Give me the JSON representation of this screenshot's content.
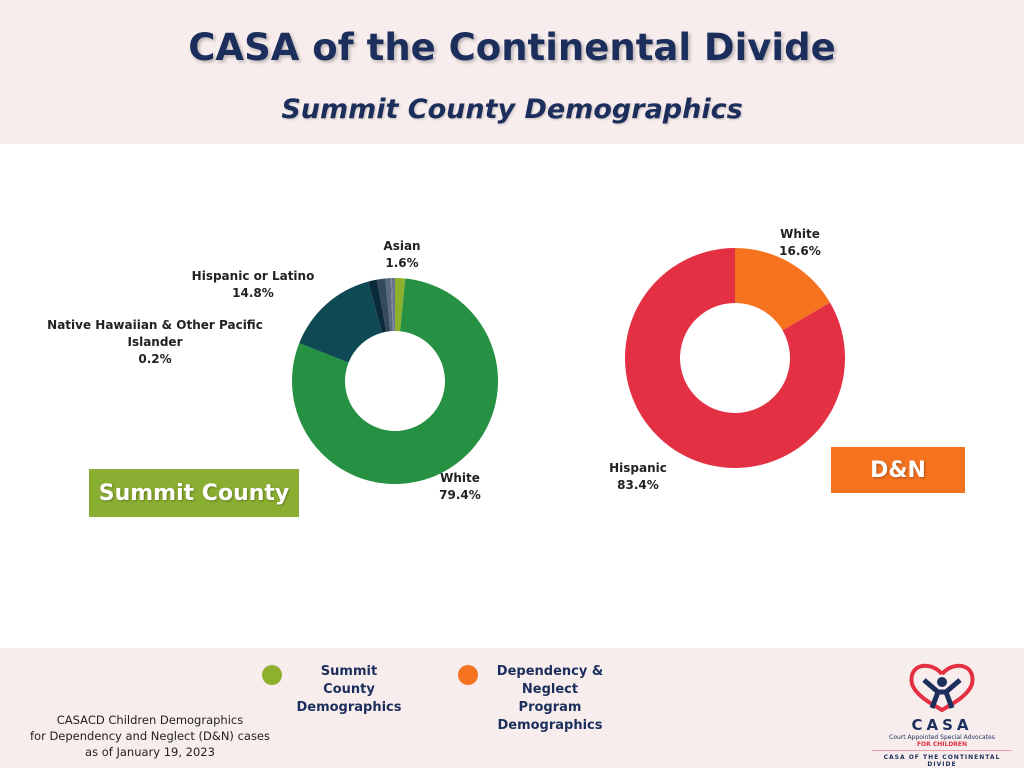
{
  "header": {
    "title": "CASA of the Continental Divide",
    "subtitle": "Summit County Demographics"
  },
  "chart_data": [
    {
      "type": "pie",
      "name": "Summit County",
      "tag": "Summit County",
      "slices": [
        {
          "label": "Asian",
          "value": 1.6,
          "display": "1.6%",
          "color": "#8db12f"
        },
        {
          "label": "White",
          "value": 79.4,
          "display": "79.4%",
          "color": "#269143"
        },
        {
          "label": "Hispanic or Latino",
          "value": 14.8,
          "display": "14.8%",
          "color": "#0e4a54"
        },
        {
          "label": null,
          "value": 1.4,
          "color": "#0b2a3a"
        },
        {
          "label": null,
          "value": 1.3,
          "color": "#35495e"
        },
        {
          "label": null,
          "value": 0.8,
          "color": "#5a6a7e"
        },
        {
          "label": "Native Hawaiian & Other Pacific Islander",
          "value": 0.2,
          "display": "0.2%",
          "color": "#7b7d9a"
        },
        {
          "label": null,
          "value": 0.5,
          "color": "#6b7590"
        }
      ]
    },
    {
      "type": "pie",
      "name": "D&N",
      "tag": "D&N",
      "slices": [
        {
          "label": "White",
          "value": 16.6,
          "display": "16.6%",
          "color": "#f5731f"
        },
        {
          "label": "Hispanic",
          "value": 83.4,
          "display": "83.4%",
          "color": "#e33042"
        }
      ]
    }
  ],
  "legend": [
    {
      "label": "Summit County Demographics",
      "color": "#8db12f"
    },
    {
      "label": "Dependency & Neglect Program Demographics",
      "color": "#f5731f"
    }
  ],
  "footnote": [
    "CASACD Children Demographics",
    "for Dependency and Neglect (D&N) cases",
    "as of January 19, 2023"
  ],
  "logo": {
    "name": "CASA",
    "line1": "Court Appointed Special Advocates",
    "line2": "FOR CHILDREN",
    "line3": "CASA OF THE CONTINENTAL DIVIDE"
  }
}
